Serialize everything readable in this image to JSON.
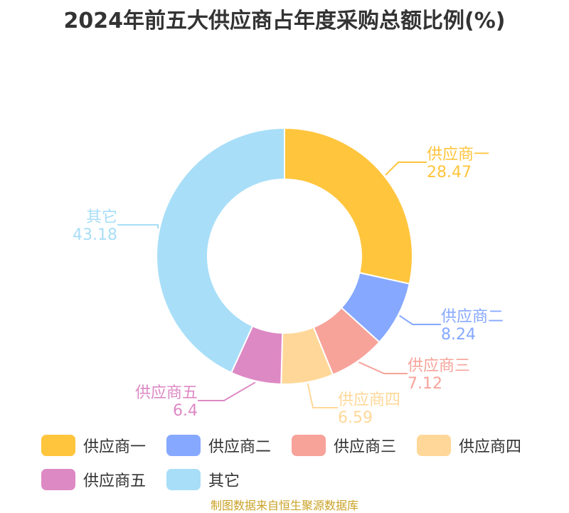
{
  "title": "2024年前五大供应商占年度采购总额比例(%)",
  "source": "制图数据来自恒生聚源数据库",
  "chart_data": {
    "type": "pie",
    "variant": "donut",
    "title": "2024年前五大供应商占年度采购总额比例(%)",
    "legend_position": "bottom",
    "slices": [
      {
        "label": "供应商一",
        "value_text": "28.47",
        "value": 28.47,
        "color": "#FFC53D"
      },
      {
        "label": "供应商二",
        "value_text": "8.24",
        "value": 8.24,
        "color": "#86A8FF"
      },
      {
        "label": "供应商三",
        "value_text": "7.12",
        "value": 7.12,
        "color": "#F7A39A"
      },
      {
        "label": "供应商四",
        "value_text": "6.59",
        "value": 6.59,
        "color": "#FFD899"
      },
      {
        "label": "供应商五",
        "value_text": "6.4",
        "value": 6.4,
        "color": "#DD89C4"
      },
      {
        "label": "其它",
        "value_text": "43.18",
        "value": 43.18,
        "color": "#A8DEF8"
      }
    ]
  }
}
